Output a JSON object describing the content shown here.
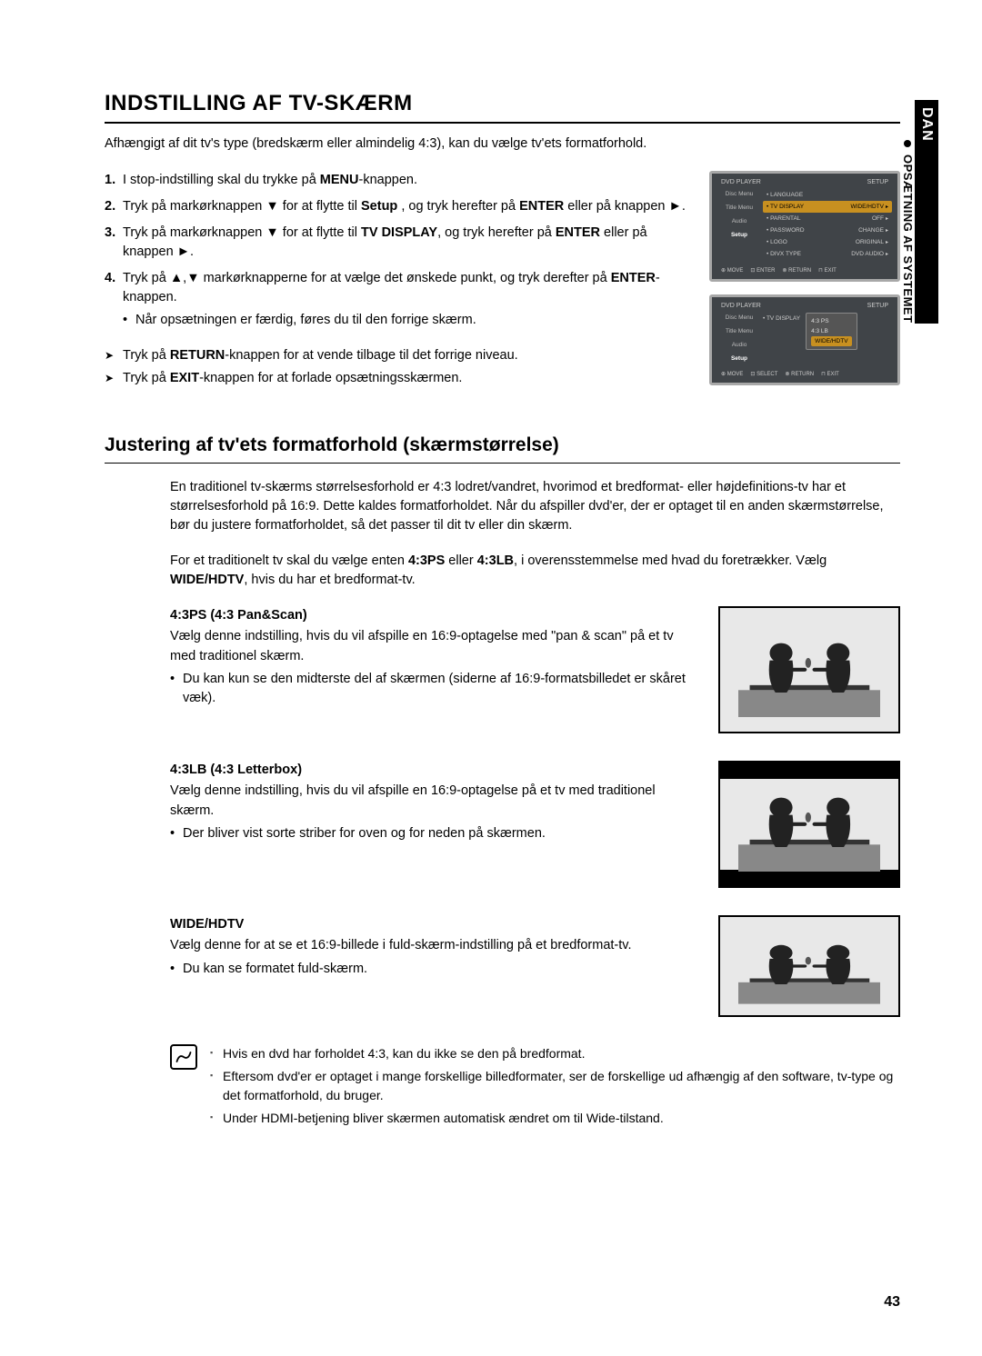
{
  "side_tab": {
    "lang": "DAN",
    "section_label": "OPSÆTNING AF SYSTEMET"
  },
  "h1": "INDSTILLING AF TV-SKÆRM",
  "intro": "Afhængigt af dit tv's type (bredskærm eller almindelig 4:3), kan du vælge tv'ets formatforhold.",
  "steps": [
    {
      "num": "1.",
      "html": "I stop-indstilling skal du trykke på <b>MENU</b>-knappen."
    },
    {
      "num": "2.",
      "html": "Tryk på markørknappen ▼ for at flytte til <b>Setup</b> , og tryk herefter på <b>ENTER</b> eller på knappen ►."
    },
    {
      "num": "3.",
      "html": "Tryk på markørknappen ▼  for at flytte til <b>TV DISPLAY</b>, og tryk herefter på <b>ENTER</b> eller på knappen ►."
    },
    {
      "num": "4.",
      "html": "Tryk på ▲,▼ markørknapperne for at vælge det ønskede punkt, og tryk derefter på <b>ENTER</b>-knappen.",
      "sub": "Når opsætningen er færdig, føres du til den forrige skærm."
    }
  ],
  "arrows": [
    "Tryk på <b>RETURN</b>-knappen for at vende tilbage til det forrige niveau.",
    "Tryk på <b>EXIT</b>-knappen for at forlade opsætningsskærmen."
  ],
  "osd1": {
    "tl": "DVD PLAYER",
    "tr": "SETUP",
    "side": [
      "Disc Menu",
      "Title Menu",
      "Audio",
      "Setup"
    ],
    "rows": [
      {
        "l": "• LANGUAGE",
        "r": "",
        "plain": true
      },
      {
        "l": "• TV DISPLAY",
        "r": "WIDE/HDTV",
        "hl": true
      },
      {
        "l": "• PARENTAL",
        "r": "OFF"
      },
      {
        "l": "• PASSWORD",
        "r": "CHANGE"
      },
      {
        "l": "• LOGO",
        "r": "ORIGINAL"
      },
      {
        "l": "• DIVX TYPE",
        "r": "DVD AUDIO"
      }
    ],
    "foot": [
      "⊕ MOVE",
      "⊡ ENTER",
      "⊗ RETURN",
      "⊓ EXIT"
    ]
  },
  "osd2": {
    "tl": "DVD PLAYER",
    "tr": "SETUP",
    "side": [
      "Disc Menu",
      "Title Menu",
      "Audio",
      "Setup"
    ],
    "label": "• TV DISPLAY",
    "options": [
      "4:3 PS",
      "4:3 LB",
      "WIDE/HDTV"
    ],
    "hl_index": 2,
    "foot": [
      "⊕ MOVE",
      "⊡ SELECT",
      "⊗ RETURN",
      "⊓ EXIT"
    ]
  },
  "h2": "Justering af tv'ets formatforhold (skærmstørrelse)",
  "para1": "En traditionel tv-skærms størrelsesforhold er 4:3 lodret/vandret, hvorimod et bredformat- eller højdefinitions-tv har et størrelsesforhold på 16:9. Dette kaldes formatforholdet. Når du afspiller dvd'er, der er optaget til en anden skærmstørrelse, bør du justere formatforholdet, så det passer til dit tv eller din skærm.",
  "para2_html": "For et traditionelt tv skal du vælge enten <b>4:3PS</b> eller <b>4:3LB</b>, i overensstemmelse med hvad du foretrækker. Vælg <b>WIDE/HDTV</b>, hvis du har et bredformat-tv.",
  "formats": {
    "ps": {
      "title": "4:3PS (4:3 Pan&Scan)",
      "text": "Vælg denne indstilling, hvis du vil afspille en 16:9-optagelse med \"pan & scan\" på et tv med traditionel skærm.",
      "bullet": "Du kan kun se den midterste del af skærmen (siderne af 16:9-formatsbilledet er skåret væk)."
    },
    "lb": {
      "title": "4:3LB (4:3 Letterbox)",
      "text": "Vælg denne indstilling, hvis du vil afspille en 16:9-optagelse på et tv med traditionel skærm.",
      "bullet": "Der bliver vist sorte striber for oven og for neden på skærmen."
    },
    "wide": {
      "title": "WIDE/HDTV",
      "text": "Vælg denne for at se et 16:9-billede i fuld-skærm-indstilling på et bredformat-tv.",
      "bullet": "Du kan se formatet fuld-skærm."
    }
  },
  "notes": [
    "Hvis en dvd har forholdet 4:3, kan du ikke se den på bredformat.",
    "Eftersom dvd'er er optaget i mange forskellige billedformater, ser de forskellige ud afhængig af den software, tv-type og det formatforhold, du bruger.",
    "Under HDMI-betjening bliver skærmen automatisk ændret om til Wide-tilstand."
  ],
  "page_number": "43",
  "colors": {
    "osd_bg": "#404448",
    "osd_border": "#a8a8a8",
    "osd_highlight": "#c89020"
  }
}
